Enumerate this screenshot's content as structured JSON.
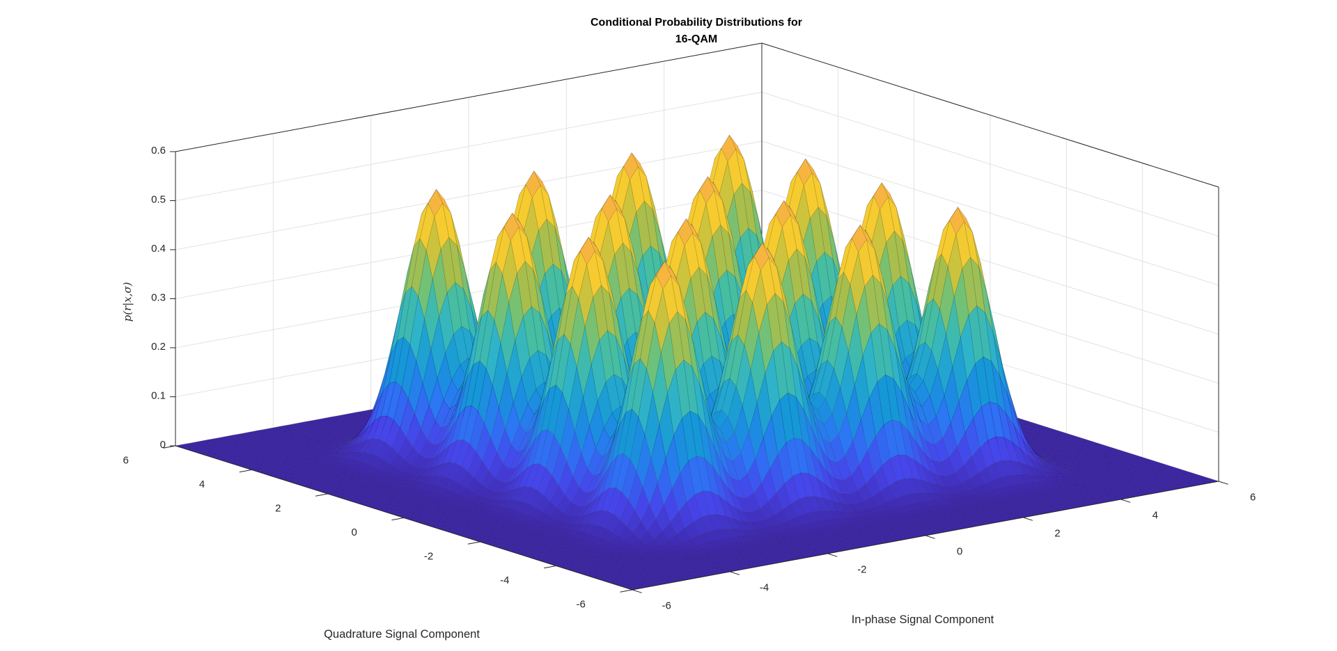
{
  "chart_data": {
    "type": "surface3d",
    "title": [
      "Conditional Probability Distributions for",
      "16-QAM"
    ],
    "xlabel": "In-phase Signal Component",
    "ylabel": "Quadrature Signal Component",
    "zlabel": "p(r|x,σ)",
    "xlim": [
      -6,
      6
    ],
    "ylim": [
      -6,
      6
    ],
    "zlim": [
      0,
      0.6
    ],
    "xticks": [
      "-6",
      "-4",
      "-2",
      "0",
      "2",
      "4",
      "6"
    ],
    "yticks": [
      "-6",
      "-4",
      "-2",
      "0",
      "2",
      "4",
      "6"
    ],
    "zticks": [
      "0",
      "0.1",
      "0.2",
      "0.3",
      "0.4",
      "0.5",
      "0.6"
    ],
    "constellation_in_phase": [
      -3,
      -1,
      1,
      3
    ],
    "constellation_quadrature": [
      -3,
      -1,
      1,
      3
    ],
    "peak_height": 0.54,
    "sigma": 0.54,
    "grid": true,
    "colormap": "parula",
    "colors": {
      "low": "#3e26a8",
      "mid": "#2fb3c8",
      "high": "#f9d329",
      "peak": "#f5a94a"
    }
  }
}
